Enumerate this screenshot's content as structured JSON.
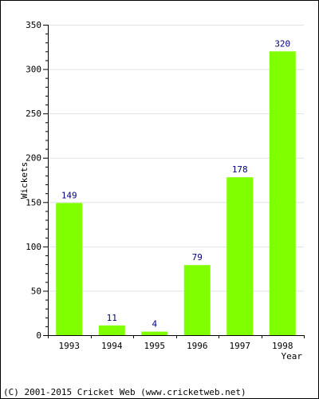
{
  "chart_data": {
    "type": "bar",
    "categories": [
      "1993",
      "1994",
      "1995",
      "1996",
      "1997",
      "1998"
    ],
    "values": [
      149,
      11,
      4,
      79,
      178,
      320
    ],
    "title": "",
    "xlabel": "Year",
    "ylabel": "Wickets",
    "ylim": [
      0,
      350
    ],
    "yticks": [
      0,
      50,
      100,
      150,
      200,
      250,
      300,
      350
    ],
    "grid": true,
    "legend": "none",
    "bar_color": "#80ff00",
    "label_color": "#000080"
  },
  "footer": {
    "copyright": "(C) 2001-2015 Cricket Web (www.cricketweb.net)"
  }
}
